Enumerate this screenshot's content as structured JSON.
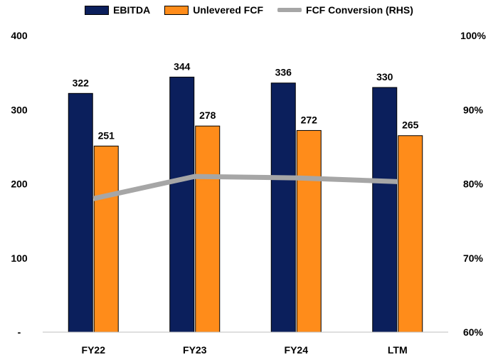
{
  "chart_data": {
    "type": "bar",
    "categories": [
      "FY22",
      "FY23",
      "FY24",
      "LTM"
    ],
    "series": [
      {
        "name": "EBITDA",
        "values": [
          322,
          344,
          336,
          330
        ],
        "color": "#0B1F5C",
        "axis": "left"
      },
      {
        "name": "Unlevered FCF",
        "values": [
          251,
          278,
          272,
          265
        ],
        "color": "#FF8C1A",
        "axis": "left"
      },
      {
        "name": "FCF Conversion (RHS)",
        "type": "line",
        "values": [
          0.78,
          0.81,
          0.808,
          0.803
        ],
        "color": "#A6A6A6",
        "axis": "right"
      }
    ],
    "y_left": {
      "ylim": [
        0,
        400
      ],
      "ticks": [
        0,
        100,
        200,
        300,
        400
      ],
      "tick_labels": [
        "-",
        "100",
        "200",
        "300",
        "400"
      ]
    },
    "y_right": {
      "ylim": [
        0.6,
        1.0
      ],
      "ticks": [
        0.6,
        0.7,
        0.8,
        0.9,
        1.0
      ],
      "tick_labels": [
        "60%",
        "70%",
        "80%",
        "90%",
        "100%"
      ]
    },
    "data_labels": {
      "EBITDA": [
        "322",
        "344",
        "336",
        "330"
      ],
      "Unlevered FCF": [
        "251",
        "278",
        "272",
        "265"
      ]
    },
    "legend_position": "top-center",
    "grid": false
  }
}
